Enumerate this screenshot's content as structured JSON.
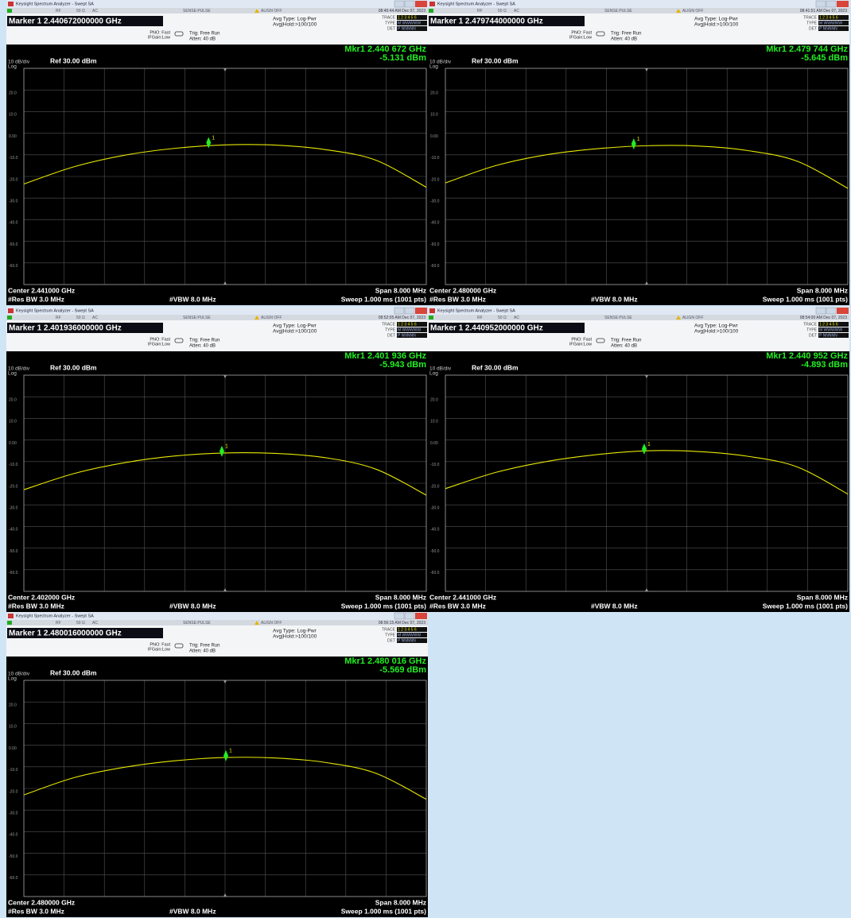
{
  "windows": [
    {
      "title_bar": "Keysight Spectrum Analyzer - Swept SA",
      "status": {
        "rf": "RF",
        "ohm": "50 Ω",
        "ac": "AC",
        "sense": "SENSE:PULSE",
        "align": "ALIGN OFF",
        "time": "08:40:44 AM Dec 07, 2023"
      },
      "marker_readout": "Marker 1 2.440672000000 GHz",
      "pno": "PNO: Fast",
      "ifgain": "IFGain:Low",
      "trig": "Trig: Free Run",
      "atten": "Atten: 40 dB",
      "avg_type": "Avg Type: Log-Pwr",
      "avg_hold": "Avg|Hold:>100/100",
      "trace_table": [
        [
          "TRACE",
          "1 2 3 4 5 6"
        ],
        [
          "TYPE",
          "M WWWWW"
        ],
        [
          "DET",
          "P NNNNN"
        ]
      ],
      "mkr_freq": "Mkr1 2.440 672 GHz",
      "mkr_level": "-5.131 dBm",
      "scale": "10 dB/div",
      "log": "Log",
      "ref": "Ref 30.00 dBm",
      "chart_data": {
        "type": "line",
        "color": "#e8e800",
        "xlim": [
          2.437,
          2.445
        ],
        "ylim": [
          -70,
          30
        ],
        "yticks": [
          {
            "value": 20,
            "label": "20.0"
          },
          {
            "value": 10,
            "label": "10.0"
          },
          {
            "value": 0,
            "label": "0.00"
          },
          {
            "value": -10,
            "label": "-10.0"
          },
          {
            "value": -20,
            "label": "-20.0"
          },
          {
            "value": -30,
            "label": "-30.0"
          },
          {
            "value": -40,
            "label": "-40.0"
          },
          {
            "value": -50,
            "label": "-50.0"
          },
          {
            "value": -60,
            "label": "-60.0"
          }
        ],
        "x": [
          2.437,
          2.438,
          2.439,
          2.44,
          2.441,
          2.442,
          2.443,
          2.444,
          2.445
        ],
        "values": [
          -23.5,
          -15.5,
          -10.2,
          -7,
          -5.4,
          -5.5,
          -7.6,
          -12.5,
          -25
        ],
        "marker": {
          "label": "1",
          "x": 2.440672,
          "y": -5.131
        }
      },
      "center": "Center 2.441000 GHz",
      "span": "Span 8.000 MHz",
      "rbw": "#Res BW 3.0 MHz",
      "vbw": "#VBW 8.0 MHz",
      "sweep": "Sweep  1.000 ms (1001 pts)"
    },
    {
      "title_bar": "Keysight Spectrum Analyzer - Swept SA",
      "status": {
        "rf": "RF",
        "ohm": "50 Ω",
        "ac": "AC",
        "sense": "SENSE:PULSE",
        "align": "ALIGN OFF",
        "time": "08:41:51 AM Dec 07, 2023"
      },
      "marker_readout": "Marker 1 2.479744000000 GHz",
      "pno": "PNO: Fast",
      "ifgain": "IFGain:Low",
      "trig": "Trig: Free Run",
      "atten": "Atten: 40 dB",
      "avg_type": "Avg Type: Log-Pwr",
      "avg_hold": "Avg|Hold:>100/100",
      "trace_table": [
        [
          "TRACE",
          "1 2 3 4 5 6"
        ],
        [
          "TYPE",
          "M WWWWW"
        ],
        [
          "DET",
          "P NNNNN"
        ]
      ],
      "mkr_freq": "Mkr1 2.479 744 GHz",
      "mkr_level": "-5.645 dBm",
      "scale": "10 dB/div",
      "log": "Log",
      "ref": "Ref 30.00 dBm",
      "chart_data": {
        "type": "line",
        "color": "#e8e800",
        "xlim": [
          2.476,
          2.484
        ],
        "ylim": [
          -70,
          30
        ],
        "yticks": [
          {
            "value": 20,
            "label": "20.0"
          },
          {
            "value": 10,
            "label": "10.0"
          },
          {
            "value": 0,
            "label": "0.00"
          },
          {
            "value": -10,
            "label": "-10.0"
          },
          {
            "value": -20,
            "label": "-20.0"
          },
          {
            "value": -30,
            "label": "-30.0"
          },
          {
            "value": -40,
            "label": "-40.0"
          },
          {
            "value": -50,
            "label": "-50.0"
          },
          {
            "value": -60,
            "label": "-60.0"
          }
        ],
        "x": [
          2.476,
          2.477,
          2.478,
          2.479,
          2.48,
          2.481,
          2.482,
          2.483,
          2.484
        ],
        "values": [
          -23,
          -15,
          -10,
          -7.2,
          -5.8,
          -5.9,
          -8,
          -13,
          -25.5
        ],
        "marker": {
          "label": "1",
          "x": 2.479744,
          "y": -5.645
        }
      },
      "center": "Center 2.480000 GHz",
      "span": "Span 8.000 MHz",
      "rbw": "#Res BW 3.0 MHz",
      "vbw": "#VBW 8.0 MHz",
      "sweep": "Sweep  1.000 ms (1001 pts)"
    },
    {
      "title_bar": "Keysight Spectrum Analyzer - Swept SA",
      "status": {
        "rf": "RF",
        "ohm": "50 Ω",
        "ac": "AC",
        "sense": "SENSE:PULSE",
        "align": "ALIGN OFF",
        "time": "08:52:05 AM Dec 07, 2023"
      },
      "marker_readout": "Marker 1 2.401936000000 GHz",
      "pno": "PNO: Fast",
      "ifgain": "IFGain:Low",
      "trig": "Trig: Free Run",
      "atten": "Atten: 40 dB",
      "avg_type": "Avg Type: Log-Pwr",
      "avg_hold": "Avg|Hold:>100/100",
      "trace_table": [
        [
          "TRACE",
          "1 2 3 4 5 6"
        ],
        [
          "TYPE",
          "M WWWWW"
        ],
        [
          "DET",
          "P NNNNN"
        ]
      ],
      "mkr_freq": "Mkr1 2.401 936 GHz",
      "mkr_level": "-5.943 dBm",
      "scale": "10 dB/div",
      "log": "Log",
      "ref": "Ref 30.00 dBm",
      "chart_data": {
        "type": "line",
        "color": "#e8e800",
        "xlim": [
          2.398,
          2.406
        ],
        "ylim": [
          -70,
          30
        ],
        "yticks": [
          {
            "value": 20,
            "label": "20.0"
          },
          {
            "value": 10,
            "label": "10.0"
          },
          {
            "value": 0,
            "label": "0.00"
          },
          {
            "value": -10,
            "label": "-10.0"
          },
          {
            "value": -20,
            "label": "-20.0"
          },
          {
            "value": -30,
            "label": "-30.0"
          },
          {
            "value": -40,
            "label": "-40.0"
          },
          {
            "value": -50,
            "label": "-50.0"
          },
          {
            "value": -60,
            "label": "-60.0"
          }
        ],
        "x": [
          2.398,
          2.399,
          2.4,
          2.401,
          2.402,
          2.403,
          2.404,
          2.405,
          2.406
        ],
        "values": [
          -23,
          -15.5,
          -10.5,
          -7.4,
          -6,
          -6.2,
          -8.2,
          -13.5,
          -25.5
        ],
        "marker": {
          "label": "1",
          "x": 2.401936,
          "y": -5.943
        }
      },
      "center": "Center 2.402000 GHz",
      "span": "Span 8.000 MHz",
      "rbw": "#Res BW 3.0 MHz",
      "vbw": "#VBW 8.0 MHz",
      "sweep": "Sweep  1.000 ms (1001 pts)"
    },
    {
      "title_bar": "Keysight Spectrum Analyzer - Swept SA",
      "status": {
        "rf": "RF",
        "ohm": "50 Ω",
        "ac": "AC",
        "sense": "SENSE:PULSE",
        "align": "ALIGN OFF",
        "time": "08:54:00 AM Dec 07, 2023"
      },
      "marker_readout": "Marker 1 2.440952000000 GHz",
      "pno": "PNO: Fast",
      "ifgain": "IFGain:Low",
      "trig": "Trig: Free Run",
      "atten": "Atten: 40 dB",
      "avg_type": "Avg Type: Log-Pwr",
      "avg_hold": "Avg|Hold:>100/100",
      "trace_table": [
        [
          "TRACE",
          "1 2 3 4 5 6"
        ],
        [
          "TYPE",
          "M WWWWW"
        ],
        [
          "DET",
          "P NNNNN"
        ]
      ],
      "mkr_freq": "Mkr1 2.440 952 GHz",
      "mkr_level": "-4.893 dBm",
      "scale": "10 dB/div",
      "log": "Log",
      "ref": "Ref 30.00 dBm",
      "chart_data": {
        "type": "line",
        "color": "#e8e800",
        "xlim": [
          2.437,
          2.445
        ],
        "ylim": [
          -70,
          30
        ],
        "yticks": [
          {
            "value": 20,
            "label": "20.0"
          },
          {
            "value": 10,
            "label": "10.0"
          },
          {
            "value": 0,
            "label": "0.00"
          },
          {
            "value": -10,
            "label": "-10.0"
          },
          {
            "value": -20,
            "label": "-20.0"
          },
          {
            "value": -30,
            "label": "-30.0"
          },
          {
            "value": -40,
            "label": "-40.0"
          },
          {
            "value": -50,
            "label": "-50.0"
          },
          {
            "value": -60,
            "label": "-60.0"
          }
        ],
        "x": [
          2.437,
          2.438,
          2.439,
          2.44,
          2.441,
          2.442,
          2.443,
          2.444,
          2.445
        ],
        "values": [
          -22.5,
          -15,
          -10,
          -6.8,
          -5,
          -5.3,
          -7.5,
          -12.5,
          -25
        ],
        "marker": {
          "label": "1",
          "x": 2.440952,
          "y": -4.893
        }
      },
      "center": "Center 2.441000 GHz",
      "span": "Span 8.000 MHz",
      "rbw": "#Res BW 3.0 MHz",
      "vbw": "#VBW 8.0 MHz",
      "sweep": "Sweep  1.000 ms (1001 pts)"
    },
    {
      "title_bar": "Keysight Spectrum Analyzer - Swept SA",
      "status": {
        "rf": "RF",
        "ohm": "50 Ω",
        "ac": "AC",
        "sense": "SENSE:PULSE",
        "align": "ALIGN OFF",
        "time": "08:56:15 AM Dec 07, 2023"
      },
      "marker_readout": "Marker 1 2.480016000000 GHz",
      "pno": "PNO: Fast",
      "ifgain": "IFGain:Low",
      "trig": "Trig: Free Run",
      "atten": "Atten: 40 dB",
      "avg_type": "Avg Type: Log-Pwr",
      "avg_hold": "Avg|Hold:>100/100",
      "trace_table": [
        [
          "TRACE",
          "1 2 3 4 5 6"
        ],
        [
          "TYPE",
          "M WWWWW"
        ],
        [
          "DET",
          "P NNNNN"
        ]
      ],
      "mkr_freq": "Mkr1 2.480 016 GHz",
      "mkr_level": "-5.569 dBm",
      "scale": "10 dB/div",
      "log": "Log",
      "ref": "Ref 30.00 dBm",
      "chart_data": {
        "type": "line",
        "color": "#e8e800",
        "xlim": [
          2.476,
          2.484
        ],
        "ylim": [
          -70,
          30
        ],
        "yticks": [
          {
            "value": 20,
            "label": "20.0"
          },
          {
            "value": 10,
            "label": "10.0"
          },
          {
            "value": 0,
            "label": "0.00"
          },
          {
            "value": -10,
            "label": "-10.0"
          },
          {
            "value": -20,
            "label": "-20.0"
          },
          {
            "value": -30,
            "label": "-30.0"
          },
          {
            "value": -40,
            "label": "-40.0"
          },
          {
            "value": -50,
            "label": "-50.0"
          },
          {
            "value": -60,
            "label": "-60.0"
          }
        ],
        "x": [
          2.476,
          2.477,
          2.478,
          2.479,
          2.48,
          2.481,
          2.482,
          2.483,
          2.484
        ],
        "values": [
          -23,
          -15,
          -10.2,
          -7.2,
          -5.7,
          -5.9,
          -8,
          -13,
          -25
        ],
        "marker": {
          "label": "1",
          "x": 2.480016,
          "y": -5.569
        }
      },
      "center": "Center 2.480000 GHz",
      "span": "Span 8.000 MHz",
      "rbw": "#Res BW 3.0 MHz",
      "vbw": "#VBW 8.0 MHz",
      "sweep": "Sweep  1.000 ms (1001 pts)"
    }
  ]
}
